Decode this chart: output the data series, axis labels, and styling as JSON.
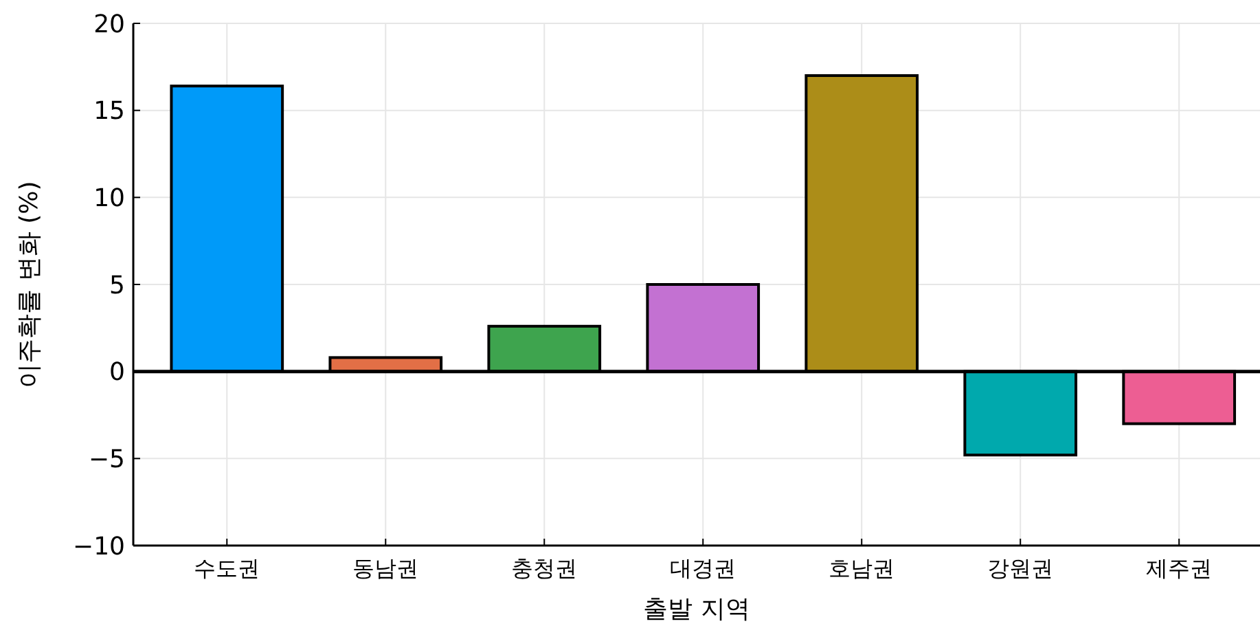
{
  "chart_data": {
    "type": "bar",
    "xlabel": "출발 지역",
    "ylabel": "이주확률 변화 (%)",
    "categories": [
      "수도권",
      "동남권",
      "충청권",
      "대경권",
      "호남권",
      "강원권",
      "제주권"
    ],
    "values": [
      16.4,
      0.8,
      2.6,
      5.0,
      17.0,
      -4.8,
      -3.0
    ],
    "colors": [
      "#009af9",
      "#e26f46",
      "#3ea44e",
      "#c371d2",
      "#ac8d18",
      "#00a9ad",
      "#ed5e93"
    ],
    "ylim": [
      -10,
      20
    ],
    "yticks": [
      -10,
      -5,
      0,
      5,
      10,
      15,
      20
    ],
    "ref_lines": [
      {
        "axis": "y",
        "value": 0,
        "color": "#000000"
      }
    ],
    "grid": true
  }
}
